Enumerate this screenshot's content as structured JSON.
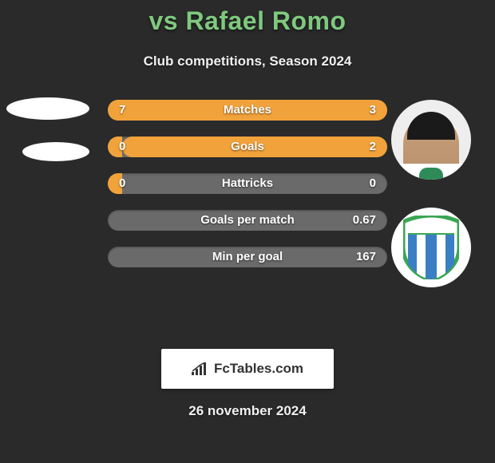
{
  "header": {
    "title": "vs Rafael Romo",
    "subtitle": "Club competitions, Season 2024"
  },
  "footer": {
    "brand": "FcTables.com",
    "date": "26 november 2024"
  },
  "colors": {
    "title": "#7fc97f",
    "bar_fill": "#f2a23a",
    "bar_track": "#6a6a6a",
    "background": "#2a2a2a",
    "text": "#f0f0f0"
  },
  "comparison": {
    "rows": [
      {
        "label": "Matches",
        "left": "7",
        "right": "3",
        "left_pct": 68,
        "right_pct": 32
      },
      {
        "label": "Goals",
        "left": "0",
        "right": "2",
        "left_pct": 5,
        "right_pct": 95
      },
      {
        "label": "Hattricks",
        "left": "0",
        "right": "0",
        "left_pct": 5,
        "right_pct": 0
      },
      {
        "label": "Goals per match",
        "left": "",
        "right": "0.67",
        "left_pct": 0,
        "right_pct": 0
      },
      {
        "label": "Min per goal",
        "left": "",
        "right": "167",
        "left_pct": 0,
        "right_pct": 0
      }
    ]
  },
  "badge": {
    "outer_ring": "#3aa655",
    "stripes": [
      "#3a7fc4",
      "#ffffff",
      "#3a7fc4",
      "#ffffff",
      "#3a7fc4"
    ]
  }
}
